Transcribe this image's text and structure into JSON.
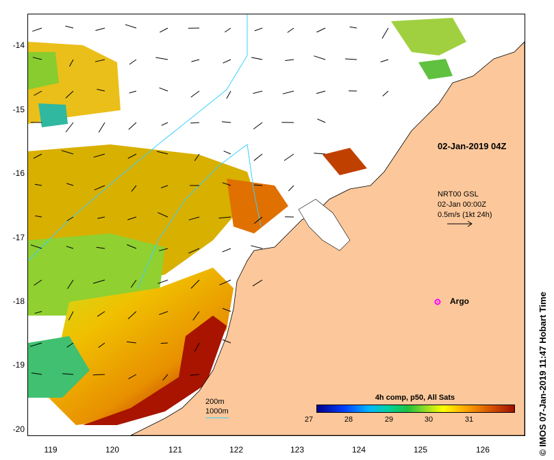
{
  "map": {
    "title_timestamp": "02-Jan-2019 04Z",
    "credit": "© IMOS 07-Jan-2019 11:47 Hobart Time",
    "y_ticks": [
      "-14",
      "-15",
      "-16",
      "-17",
      "-18",
      "-19",
      "-20"
    ],
    "x_ticks": [
      "119",
      "120",
      "121",
      "122",
      "123",
      "124",
      "125",
      "126"
    ],
    "current_product": {
      "name": "NRT00 GSL",
      "date": "02-Jan 00:00Z",
      "scale": "0.5m/s (1kt 24h)"
    },
    "argo": {
      "label": "Argo",
      "lon": 125.3,
      "lat": -18.0,
      "color": "#ff00ff"
    },
    "colorbar": {
      "title": "4h comp, p50, All Sats",
      "ticks": [
        "27",
        "28",
        "29",
        "30",
        "31"
      ],
      "range": [
        26.5,
        31.5
      ]
    },
    "isobaths": {
      "label_200": "200m",
      "label_1000": "1000m",
      "color": "#38d0ff"
    },
    "land_color": "#fcc89b",
    "extent": {
      "lon": [
        118.65,
        126.7
      ],
      "lat": [
        -20.1,
        -13.55
      ]
    }
  }
}
